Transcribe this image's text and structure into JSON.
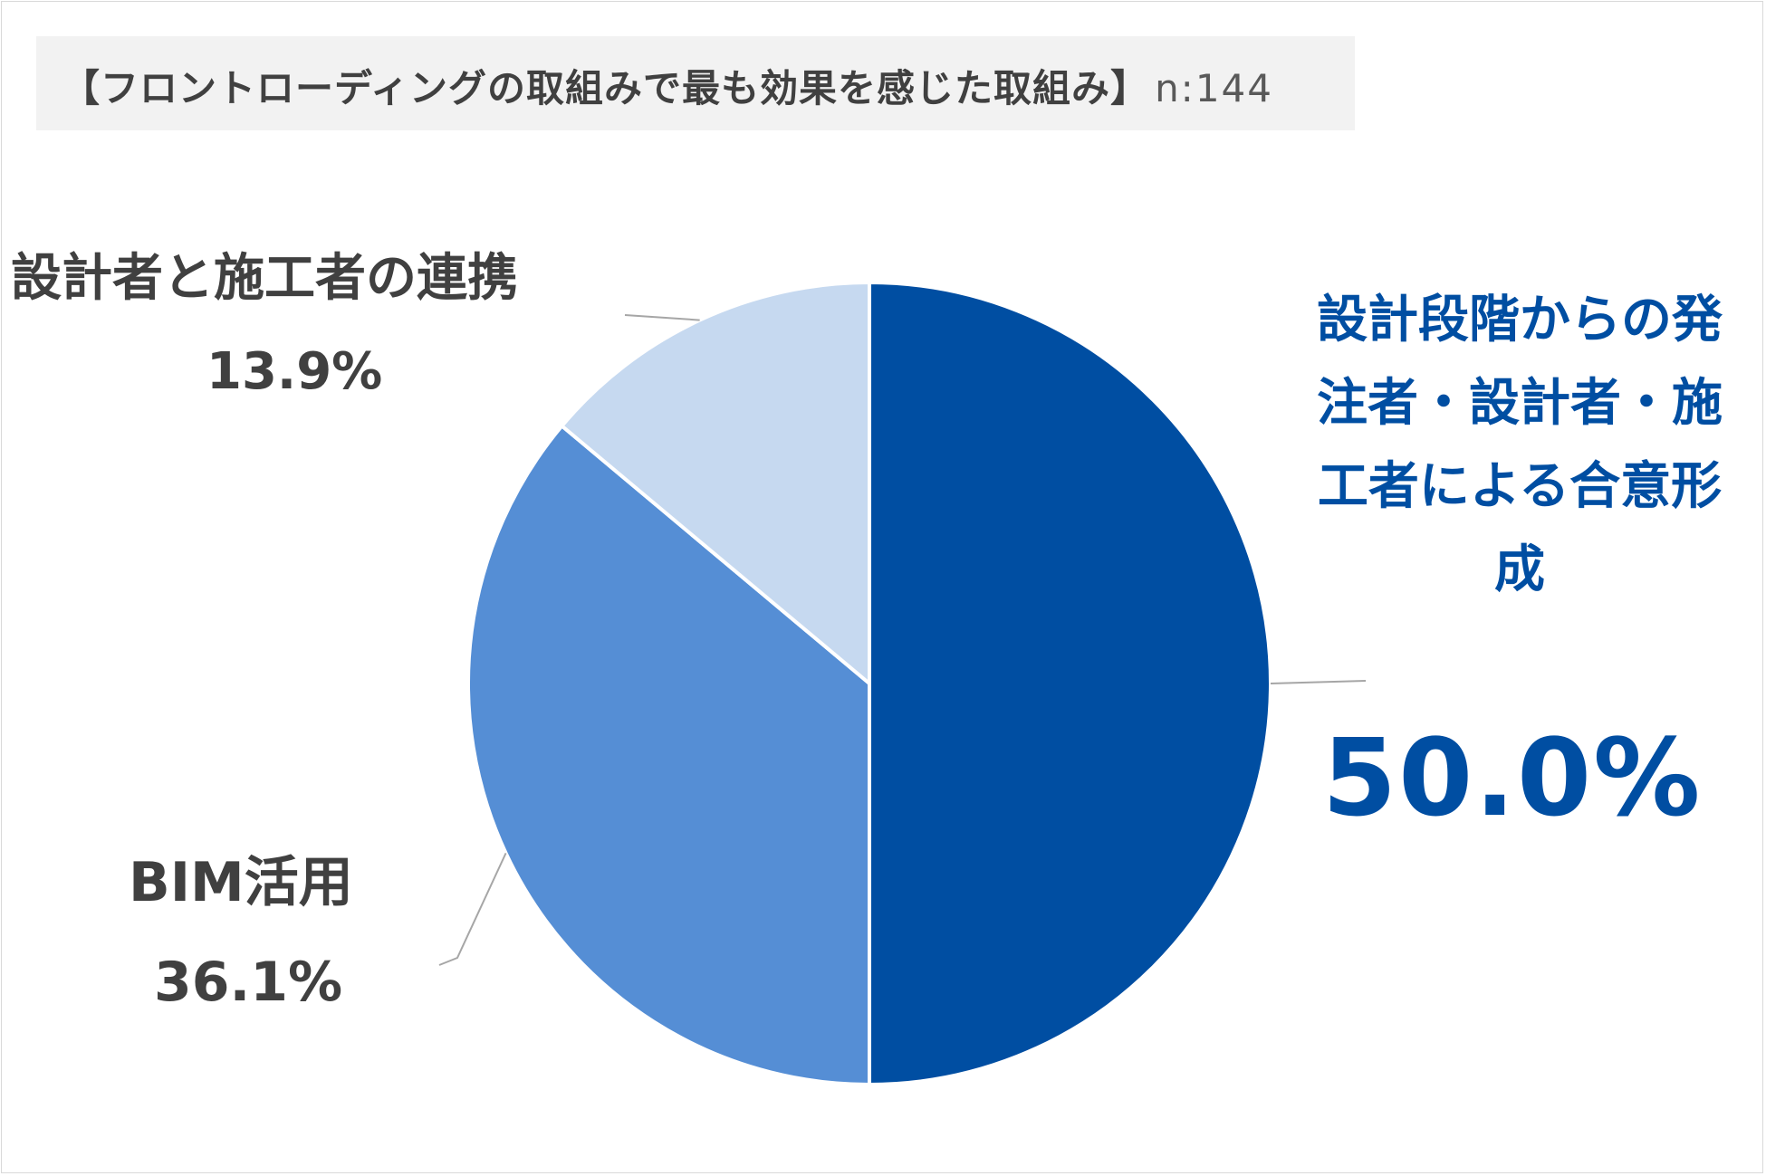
{
  "title": {
    "text": "【フロントローディングの取組みで最も効果を感じた取組み】",
    "n": "n:144"
  },
  "colors": {
    "slice_0": "#004ea2",
    "slice_1": "#558ed5",
    "slice_2": "#c6d9f0",
    "label_highlight": "#004ea2",
    "label_default": "#404040",
    "leader_line": "#a6a6a6",
    "title_background": "#f2f2f2"
  },
  "chart_data": {
    "type": "pie",
    "title": "【フロントローディングの取組みで最も効果を感じた取組み】",
    "n": 144,
    "start_angle_deg": 0,
    "direction": "clockwise",
    "legend": "none",
    "categories": [
      "設計段階からの発注者・設計者・施工者による合意形成",
      "BIM活用",
      "設計者と施工者の連携"
    ],
    "values": [
      50.0,
      36.1,
      13.9
    ],
    "value_labels": [
      "50.0%",
      "36.1%",
      "13.9%"
    ]
  }
}
